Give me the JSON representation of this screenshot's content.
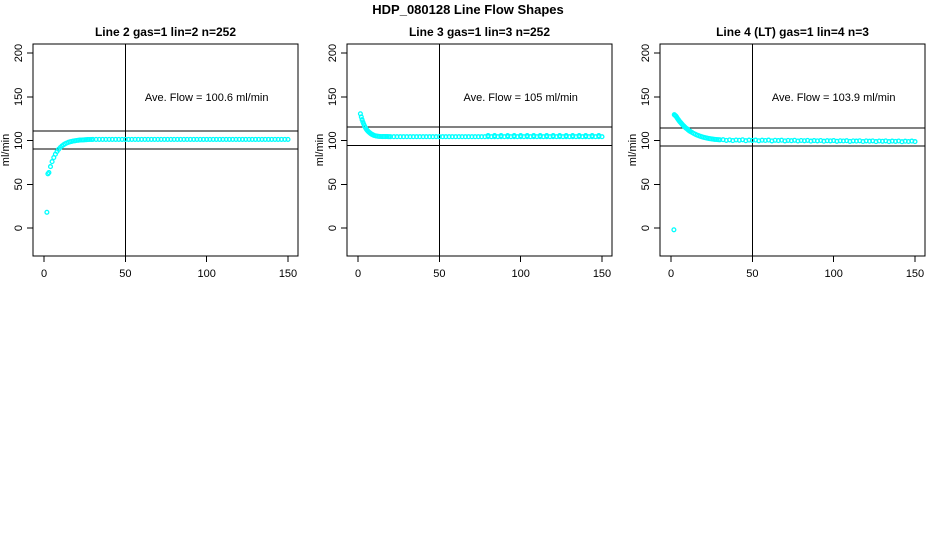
{
  "page": {
    "title": "HDP_080128  Line Flow Shapes"
  },
  "colors": {
    "background": "#ffffff",
    "axis": "#000000",
    "points": "#00ffff"
  },
  "chart_data": [
    {
      "type": "scatter",
      "title": "Line 2 gas=1 lin=2 n=252",
      "annotation": "Ave. Flow =  100.6  ml/min",
      "ave_flow": 100.6,
      "n": 252,
      "ylabel": "ml/min",
      "xlabel": "",
      "x_ticks": [
        0,
        50,
        100,
        150
      ],
      "y_ticks": [
        0,
        50,
        100,
        150,
        200
      ],
      "xlim": [
        -7,
        157
      ],
      "ylim": [
        -32,
        210
      ],
      "vline_x": 50,
      "hlines": [
        110.7,
        90.5
      ],
      "marker": "open-circle",
      "point_color": "#00ffff",
      "points": [
        [
          1.8,
          18
        ],
        [
          2.4,
          62
        ],
        [
          3,
          63.3
        ],
        [
          4,
          70.2
        ],
        [
          5,
          75.9
        ],
        [
          6,
          80.5
        ],
        [
          7,
          84.3
        ],
        [
          8,
          87.4
        ],
        [
          9,
          89.9
        ],
        [
          10,
          92
        ],
        [
          11,
          93.7
        ],
        [
          12,
          95.1
        ],
        [
          13,
          96.2
        ],
        [
          14,
          97.1
        ],
        [
          15,
          97.9
        ],
        [
          16,
          98.5
        ],
        [
          17,
          99
        ],
        [
          18,
          99.4
        ],
        [
          19,
          99.7
        ],
        [
          20,
          100
        ],
        [
          21,
          100.2
        ],
        [
          22,
          100.4
        ],
        [
          23,
          100.6
        ],
        [
          24,
          100.7
        ],
        [
          25,
          100.8
        ],
        [
          26,
          100.9
        ],
        [
          27,
          101
        ],
        [
          28,
          101.1
        ],
        [
          29,
          101.1
        ],
        [
          30,
          101.2
        ],
        [
          32,
          101.3
        ],
        [
          34,
          101.3
        ],
        [
          36,
          101.3
        ],
        [
          38,
          101.3
        ],
        [
          40,
          101.3
        ],
        [
          42,
          101.3
        ],
        [
          44,
          101.3
        ],
        [
          46,
          101.3
        ],
        [
          48,
          101.3
        ],
        [
          50,
          101.3
        ],
        [
          52,
          101.3
        ],
        [
          54,
          101.3
        ],
        [
          56,
          101.3
        ],
        [
          58,
          101.3
        ],
        [
          60,
          101.3
        ],
        [
          62,
          101.3
        ],
        [
          64,
          101.3
        ],
        [
          66,
          101.3
        ],
        [
          68,
          101.3
        ],
        [
          70,
          101.3
        ],
        [
          72,
          101.3
        ],
        [
          74,
          101.3
        ],
        [
          76,
          101.3
        ],
        [
          78,
          101.3
        ],
        [
          80,
          101.3
        ],
        [
          82,
          101.3
        ],
        [
          84,
          101.3
        ],
        [
          86,
          101.3
        ],
        [
          88,
          101.3
        ],
        [
          90,
          101.3
        ],
        [
          92,
          101.3
        ],
        [
          94,
          101.3
        ],
        [
          96,
          101.3
        ],
        [
          98,
          101.3
        ],
        [
          100,
          101.3
        ],
        [
          102,
          101.3
        ],
        [
          104,
          101.3
        ],
        [
          106,
          101.3
        ],
        [
          108,
          101.3
        ],
        [
          110,
          101.3
        ],
        [
          112,
          101.3
        ],
        [
          114,
          101.3
        ],
        [
          116,
          101.3
        ],
        [
          118,
          101.3
        ],
        [
          120,
          101.3
        ],
        [
          122,
          101.3
        ],
        [
          124,
          101.3
        ],
        [
          126,
          101.3
        ],
        [
          128,
          101.3
        ],
        [
          130,
          101.3
        ],
        [
          132,
          101.3
        ],
        [
          134,
          101.3
        ],
        [
          136,
          101.3
        ],
        [
          138,
          101.3
        ],
        [
          140,
          101.3
        ],
        [
          142,
          101.3
        ],
        [
          144,
          101.3
        ],
        [
          146,
          101.3
        ],
        [
          148,
          101.3
        ],
        [
          150,
          101.3
        ]
      ]
    },
    {
      "type": "scatter",
      "title": "Line 3 gas=1 lin=3 n=252",
      "annotation": "Ave. Flow =  105  ml/min",
      "ave_flow": 105,
      "n": 252,
      "ylabel": "ml/min",
      "xlabel": "",
      "x_ticks": [
        0,
        50,
        100,
        150
      ],
      "y_ticks": [
        0,
        50,
        100,
        150,
        200
      ],
      "xlim": [
        -7,
        157
      ],
      "ylim": [
        -32,
        210
      ],
      "vline_x": 50,
      "hlines": [
        115.5,
        94.5
      ],
      "marker": "open-circle",
      "point_color": "#00ffff",
      "points": [
        [
          1.5,
          130.5
        ],
        [
          2,
          127
        ],
        [
          2.5,
          123.8
        ],
        [
          3,
          121.1
        ],
        [
          3.5,
          118.8
        ],
        [
          4,
          116.7
        ],
        [
          4.5,
          115
        ],
        [
          5,
          113.4
        ],
        [
          5.5,
          112.1
        ],
        [
          6,
          110.9
        ],
        [
          6.5,
          109.9
        ],
        [
          7,
          109.1
        ],
        [
          7.5,
          108.3
        ],
        [
          8,
          107.7
        ],
        [
          8.5,
          107.1
        ],
        [
          9,
          106.6
        ],
        [
          9.5,
          106.1
        ],
        [
          10,
          105.7
        ],
        [
          11,
          105.2
        ],
        [
          12,
          104.9
        ],
        [
          13,
          104.7
        ],
        [
          14,
          104.6
        ],
        [
          15,
          104.5
        ],
        [
          16,
          104.4
        ],
        [
          17,
          104.4
        ],
        [
          18,
          104.4
        ],
        [
          19,
          104.3
        ],
        [
          20,
          104.3
        ],
        [
          22,
          104.3
        ],
        [
          24,
          104.3
        ],
        [
          26,
          104.3
        ],
        [
          28,
          104.3
        ],
        [
          30,
          104.3
        ],
        [
          32,
          104.3
        ],
        [
          34,
          104.3
        ],
        [
          36,
          104.3
        ],
        [
          38,
          104.3
        ],
        [
          40,
          104.3
        ],
        [
          42,
          104.3
        ],
        [
          44,
          104.3
        ],
        [
          46,
          104.3
        ],
        [
          48,
          104.3
        ],
        [
          50,
          104.3
        ],
        [
          52,
          104.3
        ],
        [
          54,
          104.3
        ],
        [
          56,
          104.3
        ],
        [
          58,
          104.3
        ],
        [
          60,
          104.3
        ],
        [
          62,
          104.3
        ],
        [
          64,
          104.3
        ],
        [
          66,
          104.3
        ],
        [
          68,
          104.3
        ],
        [
          70,
          104.3
        ],
        [
          72,
          104.3
        ],
        [
          74,
          104.3
        ],
        [
          76,
          104.3
        ],
        [
          78,
          104.3
        ],
        [
          80,
          104.3
        ],
        [
          82,
          104.3
        ],
        [
          84,
          104.3
        ],
        [
          86,
          104.3
        ],
        [
          88,
          104.3
        ],
        [
          90,
          104.3
        ],
        [
          92,
          104.3
        ],
        [
          94,
          104.3
        ],
        [
          96,
          104.3
        ],
        [
          98,
          104.3
        ],
        [
          100,
          104.3
        ],
        [
          102,
          104.3
        ],
        [
          104,
          104.3
        ],
        [
          106,
          104.3
        ],
        [
          108,
          104.3
        ],
        [
          110,
          104.3
        ],
        [
          112,
          104.3
        ],
        [
          114,
          104.3
        ],
        [
          116,
          104.3
        ],
        [
          118,
          104.3
        ],
        [
          120,
          104.3
        ],
        [
          122,
          104.3
        ],
        [
          124,
          104.3
        ],
        [
          126,
          104.3
        ],
        [
          128,
          104.3
        ],
        [
          130,
          104.3
        ],
        [
          132,
          104.3
        ],
        [
          134,
          104.3
        ],
        [
          136,
          104.3
        ],
        [
          138,
          104.3
        ],
        [
          140,
          104.3
        ],
        [
          142,
          104.3
        ],
        [
          144,
          104.3
        ],
        [
          146,
          104.3
        ],
        [
          148,
          104.3
        ],
        [
          150,
          104.3
        ],
        [
          80,
          105.6
        ],
        [
          84,
          105.6
        ],
        [
          88,
          105.6
        ],
        [
          92,
          105.6
        ],
        [
          96,
          105.6
        ],
        [
          100,
          105.6
        ],
        [
          104,
          105.6
        ],
        [
          108,
          105.6
        ],
        [
          112,
          105.6
        ],
        [
          116,
          105.6
        ],
        [
          120,
          105.6
        ],
        [
          124,
          105.6
        ],
        [
          128,
          105.6
        ],
        [
          132,
          105.6
        ],
        [
          136,
          105.6
        ],
        [
          140,
          105.6
        ],
        [
          144,
          105.6
        ],
        [
          148,
          105.6
        ]
      ]
    },
    {
      "type": "scatter",
      "title": "Line 4 (LT) gas=1 lin=4 n=3",
      "annotation": "Ave. Flow =  103.9  ml/min",
      "ave_flow": 103.9,
      "n": 3,
      "ylabel": "ml/min",
      "xlabel": "",
      "x_ticks": [
        0,
        50,
        100,
        150
      ],
      "y_ticks": [
        0,
        50,
        100,
        150,
        200
      ],
      "xlim": [
        -7,
        157
      ],
      "ylim": [
        -32,
        210
      ],
      "vline_x": 50,
      "hlines": [
        114.3,
        93.5
      ],
      "marker": "open-circle",
      "point_color": "#00ffff",
      "points": [
        [
          1.8,
          -2
        ],
        [
          2,
          129.5
        ],
        [
          2.5,
          128.7
        ],
        [
          3,
          128
        ],
        [
          3.5,
          126.6
        ],
        [
          4,
          125.2
        ],
        [
          4.5,
          123.9
        ],
        [
          5,
          122.6
        ],
        [
          5.5,
          121.4
        ],
        [
          6,
          120.3
        ],
        [
          6.5,
          119.2
        ],
        [
          7,
          118.2
        ],
        [
          7.5,
          117.2
        ],
        [
          8,
          116.3
        ],
        [
          8.5,
          115.4
        ],
        [
          9,
          114.5
        ],
        [
          9.5,
          113.7
        ],
        [
          10,
          113
        ],
        [
          10.5,
          112.2
        ],
        [
          11,
          111.5
        ],
        [
          11.5,
          110.8
        ],
        [
          12,
          110.2
        ],
        [
          13,
          109.1
        ],
        [
          14,
          108
        ],
        [
          15,
          107.1
        ],
        [
          16,
          106.2
        ],
        [
          17,
          105.5
        ],
        [
          18,
          104.8
        ],
        [
          19,
          104.2
        ],
        [
          20,
          103.7
        ],
        [
          21,
          103.2
        ],
        [
          22,
          102.8
        ],
        [
          23,
          102.4
        ],
        [
          24,
          102.1
        ],
        [
          25,
          101.8
        ],
        [
          26,
          101.5
        ],
        [
          27,
          101.3
        ],
        [
          28,
          101.1
        ],
        [
          29,
          100.9
        ],
        [
          30,
          100.8
        ],
        [
          32,
          100.9
        ],
        [
          34,
          100.1
        ],
        [
          36,
          100.7
        ],
        [
          38,
          99.9
        ],
        [
          40,
          100.6
        ],
        [
          42,
          100.2
        ],
        [
          44,
          100.8
        ],
        [
          46,
          99.8
        ],
        [
          48,
          100.4
        ],
        [
          50,
          100.1
        ],
        [
          52,
          100.5
        ],
        [
          54,
          99.7
        ],
        [
          56,
          100.3
        ],
        [
          58,
          100
        ],
        [
          60,
          100.4
        ],
        [
          62,
          99.6
        ],
        [
          64,
          100.2
        ],
        [
          66,
          99.9
        ],
        [
          68,
          100.3
        ],
        [
          70,
          99.5
        ],
        [
          72,
          100.1
        ],
        [
          74,
          99.8
        ],
        [
          76,
          100.2
        ],
        [
          78,
          99.4
        ],
        [
          80,
          100
        ],
        [
          82,
          99.7
        ],
        [
          84,
          100.1
        ],
        [
          86,
          99.3
        ],
        [
          88,
          99.9
        ],
        [
          90,
          99.6
        ],
        [
          92,
          100
        ],
        [
          94,
          99.2
        ],
        [
          96,
          99.8
        ],
        [
          98,
          99.5
        ],
        [
          100,
          99.9
        ],
        [
          102,
          99.1
        ],
        [
          104,
          99.7
        ],
        [
          106,
          99.4
        ],
        [
          108,
          99.8
        ],
        [
          110,
          99
        ],
        [
          112,
          99.6
        ],
        [
          114,
          99.3
        ],
        [
          116,
          99.7
        ],
        [
          118,
          98.9
        ],
        [
          120,
          99.5
        ],
        [
          122,
          99.2
        ],
        [
          124,
          99.6
        ],
        [
          126,
          98.8
        ],
        [
          128,
          99.4
        ],
        [
          130,
          99.1
        ],
        [
          132,
          99.5
        ],
        [
          134,
          98.7
        ],
        [
          136,
          99.3
        ],
        [
          138,
          99
        ],
        [
          140,
          99.4
        ],
        [
          142,
          98.6
        ],
        [
          144,
          99.2
        ],
        [
          146,
          98.9
        ],
        [
          148,
          99.3
        ],
        [
          150,
          98.8
        ]
      ]
    }
  ]
}
